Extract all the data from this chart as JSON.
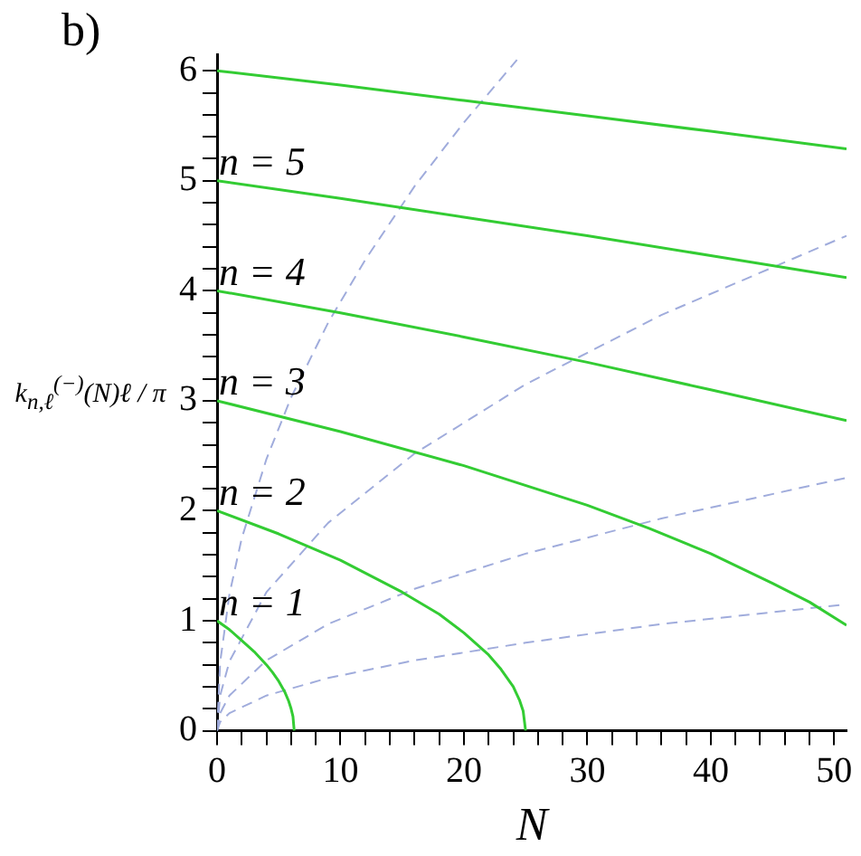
{
  "chart_data": {
    "type": "line",
    "title": "b)",
    "xlabel": "N",
    "ylabel": "k$_{n,ℓ}$$^{(−)}$(N)ℓ / π",
    "xlim": [
      0,
      51
    ],
    "ylim": [
      0,
      6.15
    ],
    "xticks": [
      0,
      {
        "value": 2,
        "label": null
      },
      {
        "value": 4,
        "label": null
      },
      {
        "value": 6,
        "label": null
      },
      {
        "value": 8,
        "label": null
      },
      10,
      {
        "value": 12,
        "label": null
      },
      {
        "value": 14,
        "label": null
      },
      {
        "value": 16,
        "label": null
      },
      {
        "value": 18,
        "label": null
      },
      20,
      {
        "value": 22,
        "label": null
      },
      {
        "value": 24,
        "label": null
      },
      {
        "value": 26,
        "label": null
      },
      {
        "value": 28,
        "label": null
      },
      30,
      {
        "value": 32,
        "label": null
      },
      {
        "value": 34,
        "label": null
      },
      {
        "value": 36,
        "label": null
      },
      {
        "value": 38,
        "label": null
      },
      40,
      {
        "value": 42,
        "label": null
      },
      {
        "value": 44,
        "label": null
      },
      {
        "value": 46,
        "label": null
      },
      {
        "value": 48,
        "label": null
      },
      50
    ],
    "yticks": [
      0,
      {
        "value": 0.2,
        "label": null
      },
      {
        "value": 0.4,
        "label": null
      },
      {
        "value": 0.6,
        "label": null
      },
      {
        "value": 0.8,
        "label": null
      },
      1,
      {
        "value": 1.2,
        "label": null
      },
      {
        "value": 1.4,
        "label": null
      },
      {
        "value": 1.6,
        "label": null
      },
      {
        "value": 1.8,
        "label": null
      },
      2,
      {
        "value": 2.2,
        "label": null
      },
      {
        "value": 2.4,
        "label": null
      },
      {
        "value": 2.6,
        "label": null
      },
      {
        "value": 2.8,
        "label": null
      },
      3,
      {
        "value": 3.2,
        "label": null
      },
      {
        "value": 3.4,
        "label": null
      },
      {
        "value": 3.6,
        "label": null
      },
      {
        "value": 3.8,
        "label": null
      },
      4,
      {
        "value": 4.2,
        "label": null
      },
      {
        "value": 4.4,
        "label": null
      },
      {
        "value": 4.6,
        "label": null
      },
      {
        "value": 4.8,
        "label": null
      },
      5,
      {
        "value": 5.2,
        "label": null
      },
      {
        "value": 5.4,
        "label": null
      },
      {
        "value": 5.6,
        "label": null
      },
      {
        "value": 5.8,
        "label": null
      },
      6
    ],
    "grid": false,
    "legend": false,
    "marker": "none",
    "series": [
      {
        "name": "n = 1",
        "color": "#33cc33",
        "line_style": "solid",
        "x": [
          0,
          1,
          2,
          3,
          4,
          4.5,
          5,
          5.5,
          5.8,
          6,
          6.15,
          6.25
        ],
        "values": [
          1,
          0.92,
          0.82,
          0.72,
          0.6,
          0.53,
          0.45,
          0.35,
          0.27,
          0.2,
          0.13,
          0
        ]
      },
      {
        "name": "n = 2",
        "color": "#33cc33",
        "line_style": "solid",
        "x": [
          0,
          5,
          10,
          15,
          18,
          20,
          22,
          23,
          24,
          24.5,
          24.8,
          25
        ],
        "values": [
          2,
          1.79,
          1.55,
          1.26,
          1.06,
          0.89,
          0.69,
          0.56,
          0.4,
          0.28,
          0.18,
          0
        ]
      },
      {
        "name": "n = 3",
        "color": "#33cc33",
        "line_style": "solid",
        "x": [
          0,
          10,
          20,
          30,
          35,
          40,
          45,
          48,
          51
        ],
        "values": [
          3,
          2.72,
          2.41,
          2.05,
          1.84,
          1.61,
          1.34,
          1.17,
          0.96
        ]
      },
      {
        "name": "n = 4",
        "color": "#33cc33",
        "line_style": "solid",
        "x": [
          0,
          10,
          20,
          30,
          40,
          51
        ],
        "values": [
          4,
          3.8,
          3.58,
          3.35,
          3.1,
          2.82
        ]
      },
      {
        "name": "n = 5",
        "color": "#33cc33",
        "line_style": "solid",
        "x": [
          0,
          10,
          20,
          30,
          40,
          51
        ],
        "values": [
          5,
          4.84,
          4.67,
          4.5,
          4.32,
          4.12
        ]
      },
      {
        "color": "#33cc33",
        "line_style": "solid",
        "x": [
          0,
          10,
          20,
          30,
          40,
          51
        ],
        "values": [
          6,
          5.87,
          5.73,
          5.59,
          5.45,
          5.29
        ]
      },
      {
        "color": "#a0acdc",
        "line_style": "dashed",
        "x": [
          0,
          0.25,
          1,
          2,
          4,
          6,
          9,
          12,
          16,
          20,
          24.3
        ],
        "values": [
          0,
          0.62,
          1.24,
          1.75,
          2.47,
          3.03,
          3.71,
          4.28,
          4.95,
          5.53,
          6.1
        ]
      },
      {
        "color": "#a0acdc",
        "line_style": "dashed",
        "x": [
          0,
          0.25,
          1,
          4,
          9,
          16,
          25,
          36,
          51
        ],
        "values": [
          0,
          0.32,
          0.63,
          1.26,
          1.89,
          2.52,
          3.15,
          3.78,
          4.5
        ]
      },
      {
        "color": "#a0acdc",
        "line_style": "dashed",
        "x": [
          0,
          0.25,
          1,
          4,
          9,
          16,
          25,
          36,
          51
        ],
        "values": [
          0,
          0.16,
          0.32,
          0.64,
          0.97,
          1.29,
          1.61,
          1.93,
          2.3
        ]
      },
      {
        "color": "#a0acdc",
        "line_style": "dashed",
        "x": [
          0,
          0.25,
          1,
          4,
          9,
          16,
          25,
          36,
          51
        ],
        "values": [
          0,
          0.08,
          0.16,
          0.32,
          0.48,
          0.64,
          0.8,
          0.97,
          1.15
        ]
      }
    ]
  }
}
